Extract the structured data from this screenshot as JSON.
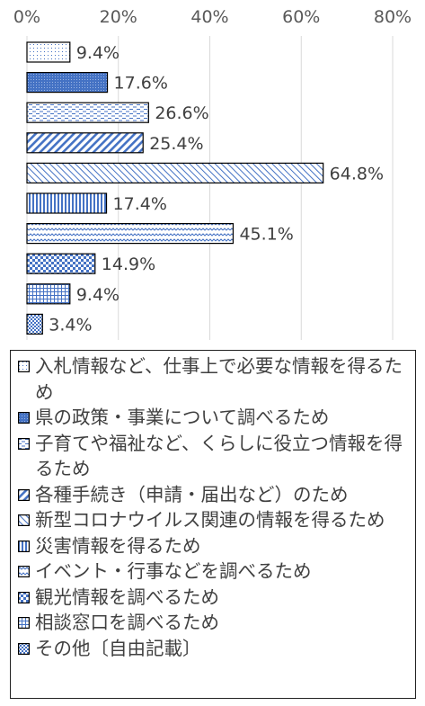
{
  "chart_data": {
    "type": "bar",
    "orientation": "horizontal",
    "title": "",
    "xlabel": "",
    "ylabel": "",
    "xlim": [
      0,
      80
    ],
    "ticks": [
      0,
      20,
      40,
      60,
      80
    ],
    "tick_labels": [
      "0%",
      "20%",
      "40%",
      "60%",
      "80%"
    ],
    "grid": true,
    "legend_position": "bottom",
    "series": [
      {
        "name": "入札情報など、仕事上で必要な情報を得るため",
        "value": 9.4,
        "label": "9.4%",
        "pattern": "dots",
        "color": "#4472c4"
      },
      {
        "name": "県の政策・事業について調べるため",
        "value": 17.6,
        "label": "17.6%",
        "pattern": "dense-dots",
        "color": "#4472c4"
      },
      {
        "name": "子育てや福祉など、くらしに役立つ情報を得るため",
        "value": 26.6,
        "label": "26.6%",
        "pattern": "dashes",
        "color": "#4472c4"
      },
      {
        "name": "各種手続き（申請・届出など）のため",
        "value": 25.4,
        "label": "25.4%",
        "pattern": "diagonal",
        "color": "#4472c4"
      },
      {
        "name": "新型コロナウイルス関連の情報を得るため",
        "value": 64.8,
        "label": "64.8%",
        "pattern": "light-diagonal",
        "color": "#4472c4"
      },
      {
        "name": "災害情報を得るため",
        "value": 17.4,
        "label": "17.4%",
        "pattern": "vertical",
        "color": "#4472c4"
      },
      {
        "name": "イベント・行事などを調べるため",
        "value": 45.1,
        "label": "45.1%",
        "pattern": "wave",
        "color": "#4472c4"
      },
      {
        "name": "観光情報を調べるため",
        "value": 14.9,
        "label": "14.9%",
        "pattern": "checker",
        "color": "#4472c4"
      },
      {
        "name": "相談窓口を調べるため",
        "value": 9.4,
        "label": "9.4%",
        "pattern": "grid",
        "color": "#4472c4"
      },
      {
        "name": "その他〔自由記載〕",
        "value": 3.4,
        "label": "3.4%",
        "pattern": "small-checker",
        "color": "#4472c4"
      }
    ]
  }
}
